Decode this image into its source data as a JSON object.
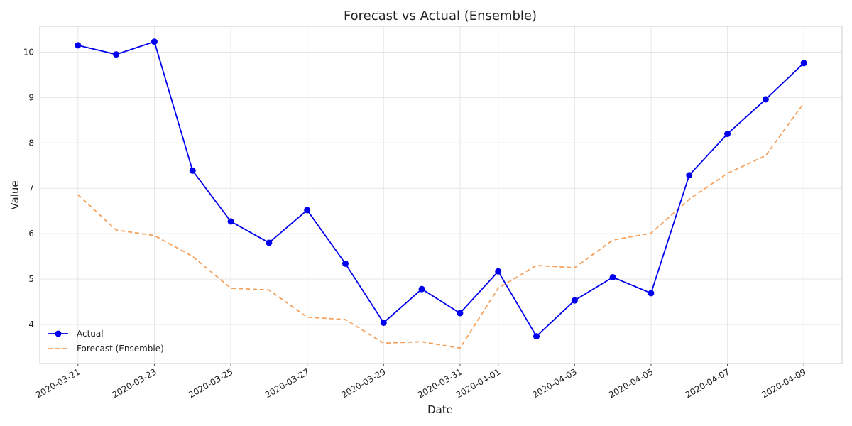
{
  "chart_data": {
    "type": "line",
    "title": "Forecast vs Actual (Ensemble)",
    "xlabel": "Date",
    "ylabel": "Value",
    "x": [
      "2020-03-21",
      "2020-03-22",
      "2020-03-23",
      "2020-03-24",
      "2020-03-25",
      "2020-03-26",
      "2020-03-27",
      "2020-03-28",
      "2020-03-29",
      "2020-03-30",
      "2020-03-31",
      "2020-04-01",
      "2020-04-02",
      "2020-04-03",
      "2020-04-04",
      "2020-04-05",
      "2020-04-06",
      "2020-04-07",
      "2020-04-08",
      "2020-04-09"
    ],
    "x_ticks": [
      "2020-03-21",
      "2020-03-23",
      "2020-03-25",
      "2020-03-27",
      "2020-03-29",
      "2020-03-31",
      "2020-04-01",
      "2020-04-03",
      "2020-04-05",
      "2020-04-07",
      "2020-04-09"
    ],
    "y_ticks": [
      4,
      5,
      6,
      7,
      8,
      9,
      10
    ],
    "ylim": [
      3.14,
      10.57
    ],
    "xlim": [
      "2020-03-20",
      "2020-04-10"
    ],
    "grid": true,
    "legend_position": "bottom-left",
    "series": [
      {
        "name": "Actual",
        "color": "#0000ee",
        "style": "solid-markers",
        "values": [
          10.15,
          9.95,
          10.23,
          7.39,
          6.27,
          5.8,
          6.52,
          5.34,
          4.04,
          4.78,
          4.25,
          5.17,
          3.74,
          4.53,
          5.04,
          4.69,
          7.29,
          8.2,
          8.96,
          9.76
        ]
      },
      {
        "name": "Forecast (Ensemble)",
        "color": "#f5a05a",
        "style": "dashed",
        "values": [
          6.86,
          6.08,
          5.96,
          5.5,
          4.8,
          4.76,
          4.16,
          4.11,
          3.59,
          3.62,
          3.48,
          4.8,
          5.3,
          5.25,
          5.86,
          6.01,
          6.76,
          7.33,
          7.72,
          8.88
        ]
      }
    ]
  }
}
